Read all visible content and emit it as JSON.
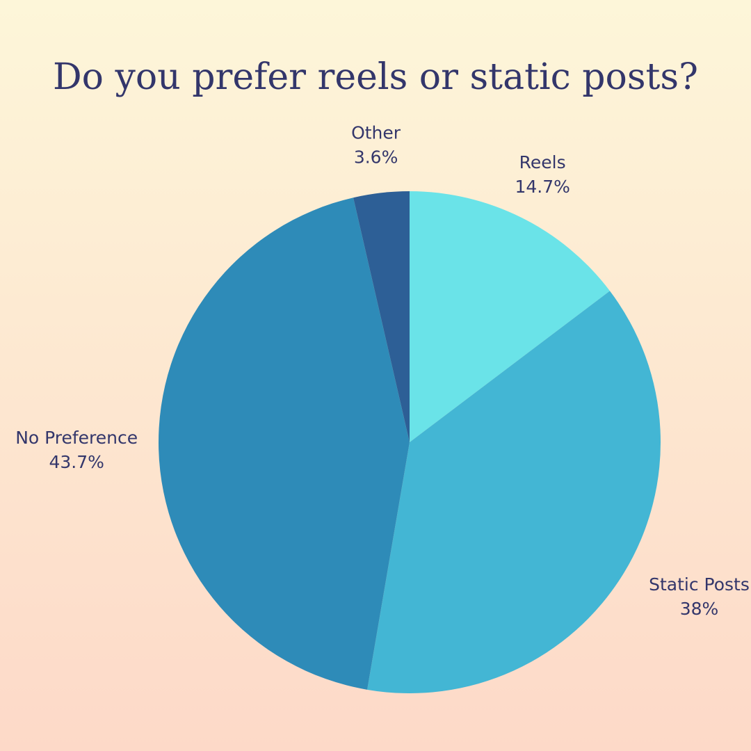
{
  "chart_data": {
    "type": "pie",
    "title": "Do you prefer reels or static posts?",
    "categories": [
      "Reels",
      "Static Posts",
      "No Preference",
      "Other"
    ],
    "values": [
      14.7,
      38,
      43.7,
      3.6
    ],
    "value_labels": [
      "14.7%",
      "38%",
      "43.7%",
      "3.6%"
    ],
    "colors": [
      "#6ae3e8",
      "#43b6d4",
      "#2e8bb8",
      "#2d5f96"
    ]
  }
}
